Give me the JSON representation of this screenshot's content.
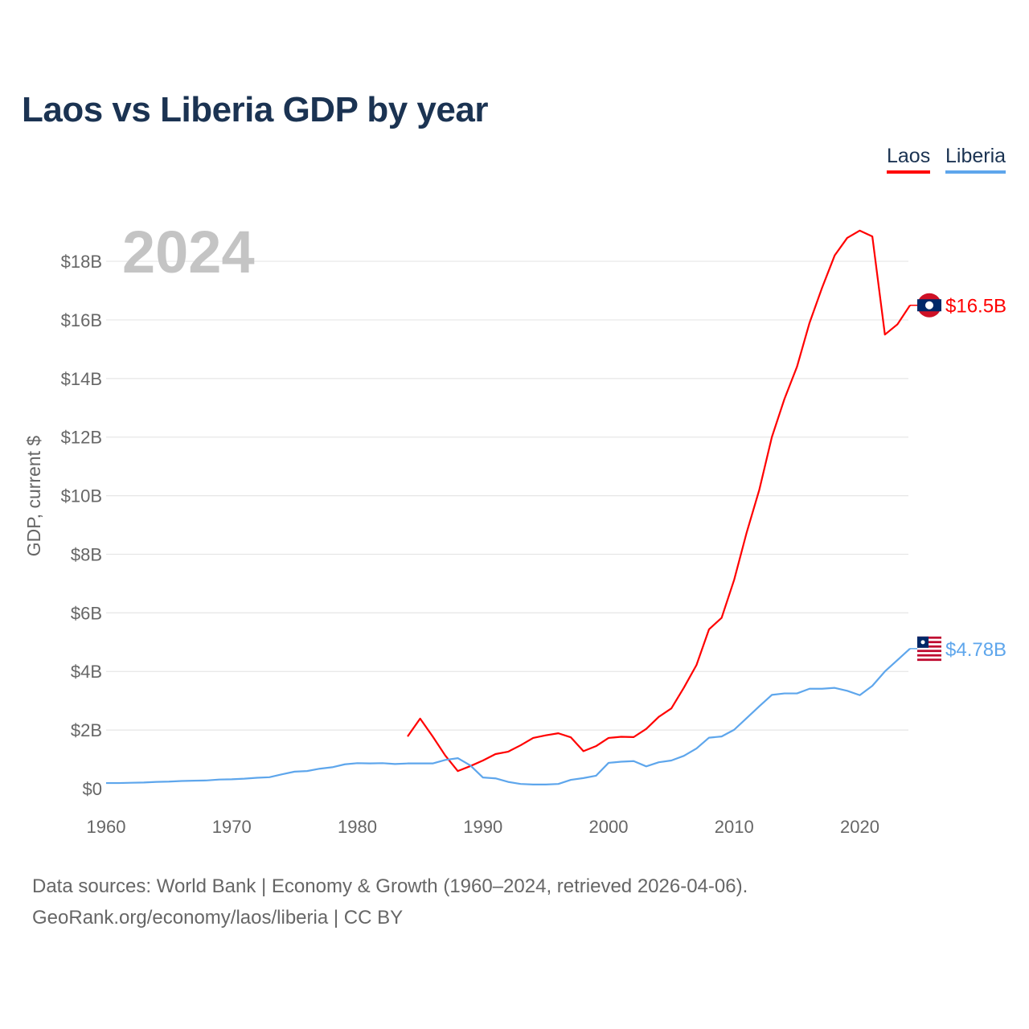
{
  "title": "Laos vs Liberia GDP by year",
  "footer": {
    "line1": "Data sources: World Bank | Economy & Growth (1960–2024, retrieved 2026-04-06).",
    "line2": "GeoRank.org/economy/laos/liberia | CC BY"
  },
  "chart_data": {
    "type": "line",
    "title": "Laos vs Liberia GDP by year",
    "year_watermark": "2024",
    "xlabel": "",
    "ylabel": "GDP, current $",
    "xlim": [
      1960,
      2024
    ],
    "ylim": [
      0,
      19.5
    ],
    "x_ticks": [
      1960,
      1970,
      1980,
      1990,
      2000,
      2010,
      2020
    ],
    "x_tick_labels": [
      "1960",
      "1970",
      "1980",
      "1990",
      "2000",
      "2010",
      "2020"
    ],
    "y_ticks": [
      0,
      2,
      4,
      6,
      8,
      10,
      12,
      14,
      16,
      18
    ],
    "y_tick_labels": [
      "$0",
      "$2B",
      "$4B",
      "$6B",
      "$8B",
      "$10B",
      "$12B",
      "$14B",
      "$16B",
      "$18B"
    ],
    "grid": true,
    "legend_position": "top-right",
    "series": [
      {
        "name": "Laos",
        "color": "#ff0000",
        "end_label": "$16.5B",
        "flag_icon": "laos-flag-icon",
        "start_year": 1984,
        "values": [
          1.78,
          2.39,
          1.78,
          1.13,
          0.6,
          0.77,
          0.96,
          1.18,
          1.26,
          1.48,
          1.73,
          1.82,
          1.89,
          1.75,
          1.28,
          1.45,
          1.73,
          1.77,
          1.76,
          2.04,
          2.45,
          2.74,
          3.45,
          4.22,
          5.44,
          5.83,
          7.13,
          8.75,
          10.2,
          12.0,
          13.3,
          14.4,
          15.9,
          17.1,
          18.2,
          18.8,
          19.05,
          18.85,
          15.5,
          15.85,
          16.5
        ]
      },
      {
        "name": "Liberia",
        "color": "#5ea6ec",
        "end_label": "$4.78B",
        "flag_icon": "liberia-flag-icon",
        "start_year": 1960,
        "values": [
          0.19,
          0.19,
          0.2,
          0.21,
          0.23,
          0.24,
          0.26,
          0.27,
          0.28,
          0.31,
          0.32,
          0.34,
          0.37,
          0.39,
          0.49,
          0.58,
          0.6,
          0.68,
          0.73,
          0.83,
          0.87,
          0.86,
          0.87,
          0.84,
          0.86,
          0.86,
          0.86,
          0.98,
          1.04,
          0.79,
          0.38,
          0.35,
          0.23,
          0.16,
          0.14,
          0.14,
          0.16,
          0.3,
          0.36,
          0.44,
          0.88,
          0.92,
          0.94,
          0.76,
          0.9,
          0.96,
          1.12,
          1.37,
          1.74,
          1.78,
          2.01,
          2.41,
          2.81,
          3.2,
          3.25,
          3.25,
          3.41,
          3.41,
          3.44,
          3.34,
          3.19,
          3.51,
          4.0,
          4.39,
          4.78
        ]
      }
    ]
  }
}
